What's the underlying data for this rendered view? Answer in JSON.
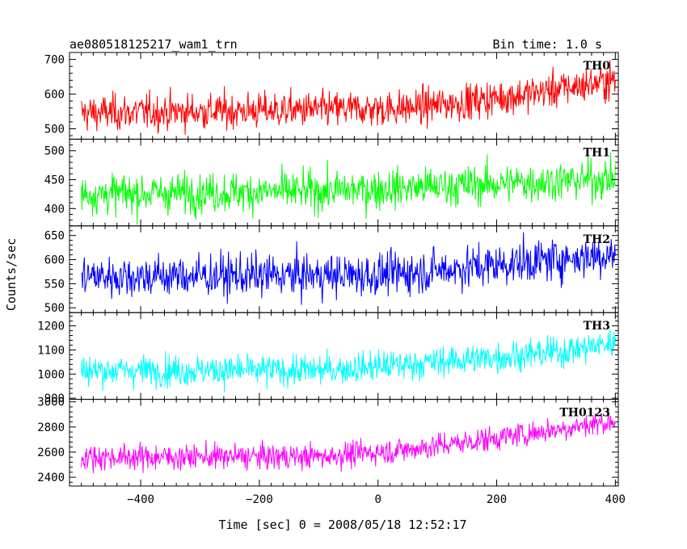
{
  "chart_data": {
    "type": "line",
    "title": "ae080518125217_wam1_trn",
    "bin_time": "Bin time: 1.0 s",
    "xlabel": "Time [sec] 0 = 2008/05/18 12:52:17",
    "ylabel": "Counts/sec",
    "xlim": [
      -520,
      405
    ],
    "x_range": [
      -500,
      400
    ],
    "xticks": [
      -400,
      -200,
      0,
      200,
      400
    ],
    "xtick_labels": [
      "−400",
      "−200",
      "0",
      "200",
      "400"
    ],
    "panels": [
      {
        "name": "TH0",
        "color": "#ff0000",
        "ylim": [
          470,
          720
        ],
        "yticks": [
          500,
          600,
          700
        ],
        "ytick_labels": [
          "500",
          "600",
          "700"
        ],
        "trend": [
          [
            -500,
            545
          ],
          [
            -100,
            555
          ],
          [
            50,
            560
          ],
          [
            150,
            578
          ],
          [
            250,
            600
          ],
          [
            400,
            640
          ]
        ],
        "noise": 26
      },
      {
        "name": "TH1",
        "color": "#00ff00",
        "ylim": [
          370,
          520
        ],
        "yticks": [
          400,
          450,
          500
        ],
        "ytick_labels": [
          "400",
          "450",
          "500"
        ],
        "trend": [
          [
            -500,
            425
          ],
          [
            -100,
            430
          ],
          [
            100,
            438
          ],
          [
            400,
            452
          ]
        ],
        "noise": 17
      },
      {
        "name": "TH2",
        "color": "#0000ff",
        "ylim": [
          490,
          670
        ],
        "yticks": [
          500,
          550,
          600,
          650
        ],
        "ytick_labels": [
          "500",
          "550",
          "600",
          "650"
        ],
        "trend": [
          [
            -500,
            565
          ],
          [
            0,
            568
          ],
          [
            100,
            578
          ],
          [
            250,
            595
          ],
          [
            400,
            612
          ]
        ],
        "noise": 22
      },
      {
        "name": "TH3",
        "color": "#00ffff",
        "ylim": [
          895,
          1255
        ],
        "yticks": [
          900,
          1000,
          1100,
          1200
        ],
        "ytick_labels": [
          "900",
          "1000",
          "1100",
          "1200"
        ],
        "trend": [
          [
            -500,
            1015
          ],
          [
            -100,
            1015
          ],
          [
            50,
            1040
          ],
          [
            200,
            1070
          ],
          [
            300,
            1090
          ],
          [
            400,
            1130
          ]
        ],
        "noise": 32
      },
      {
        "name": "TH0123",
        "color": "#ff00ff",
        "ylim": [
          2330,
          3020
        ],
        "yticks": [
          2400,
          2600,
          2800,
          3000
        ],
        "ytick_labels": [
          "2400",
          "2600",
          "2800",
          "3000"
        ],
        "trend": [
          [
            -500,
            2560
          ],
          [
            -100,
            2565
          ],
          [
            50,
            2620
          ],
          [
            150,
            2680
          ],
          [
            300,
            2780
          ],
          [
            400,
            2850
          ]
        ],
        "noise": 50
      }
    ]
  }
}
